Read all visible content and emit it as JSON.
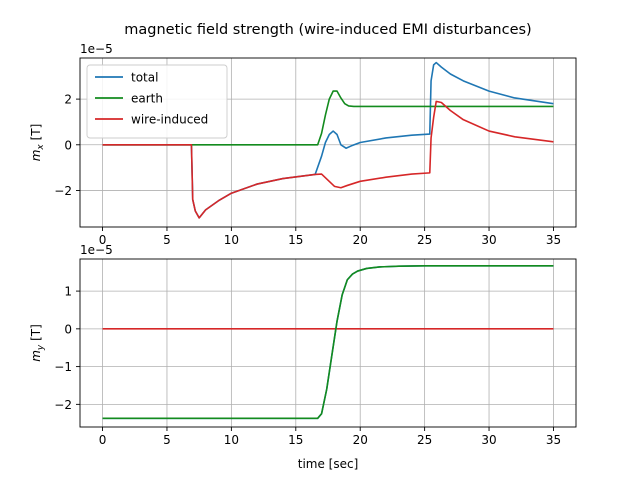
{
  "figure": {
    "title": "magnetic field strength (wire-induced EMI disturbances)"
  },
  "colors": {
    "total": "#1f77b4",
    "earth": "#138b1e",
    "wire_induced": "#d62728",
    "grid": "#b0b0b0",
    "axes": "#000000",
    "legend_border": "#cccccc"
  },
  "chart_data": [
    {
      "type": "line",
      "title": "magnetic field strength (wire-induced EMI disturbances)",
      "xlabel": "",
      "ylabel": "m_x [T]",
      "ylabel_base": "m",
      "ylabel_sub": "x",
      "ylabel_unit": " [T]",
      "offset_text": "1e−5",
      "scale": 1e-05,
      "xlim": [
        -1.75,
        36.75
      ],
      "ylim": [
        -3.6,
        3.8
      ],
      "xticks": [
        0,
        5,
        10,
        15,
        20,
        25,
        30,
        35
      ],
      "xtick_labels": [
        "0",
        "5",
        "10",
        "15",
        "20",
        "25",
        "30",
        "35"
      ],
      "yticks": [
        -2,
        0,
        2
      ],
      "ytick_labels": [
        "−2",
        "0",
        "2"
      ],
      "grid": true,
      "legend": "upper-left",
      "series": [
        {
          "name": "total",
          "color_key": "total",
          "x": [
            0,
            6.9,
            7.0,
            7.2,
            7.5,
            8,
            9,
            10,
            12,
            14,
            16.5,
            17,
            17.3,
            17.6,
            17.9,
            18.2,
            18.5,
            18.9,
            19.3,
            20,
            22,
            24,
            25.4,
            25.5,
            25.7,
            25.9,
            26.3,
            27,
            28,
            30,
            32,
            35
          ],
          "values": [
            0,
            0,
            -2.4,
            -2.9,
            -3.2,
            -2.85,
            -2.45,
            -2.12,
            -1.72,
            -1.48,
            -1.3,
            -0.5,
            0.1,
            0.45,
            0.6,
            0.45,
            0.0,
            -0.15,
            -0.05,
            0.1,
            0.3,
            0.42,
            0.47,
            2.8,
            3.5,
            3.6,
            3.4,
            3.1,
            2.8,
            2.35,
            2.05,
            1.8
          ]
        },
        {
          "name": "earth",
          "color_key": "earth",
          "x": [
            0,
            16.7,
            17.0,
            17.3,
            17.6,
            17.9,
            18.2,
            18.5,
            18.8,
            19.1,
            19.5,
            20,
            25,
            35
          ],
          "values": [
            0,
            0,
            0.5,
            1.3,
            2.0,
            2.35,
            2.35,
            2.05,
            1.8,
            1.7,
            1.68,
            1.68,
            1.68,
            1.68
          ]
        },
        {
          "name": "wire-induced",
          "color_key": "wire_induced",
          "x": [
            0,
            6.9,
            7.0,
            7.2,
            7.5,
            8,
            9,
            10,
            12,
            14,
            16.5,
            17,
            17.5,
            18,
            18.5,
            19,
            20,
            22,
            24,
            25.4,
            25.5,
            25.7,
            25.9,
            26.3,
            27,
            28,
            30,
            32,
            35
          ],
          "values": [
            0,
            0,
            -2.4,
            -2.9,
            -3.2,
            -2.85,
            -2.45,
            -2.12,
            -1.72,
            -1.48,
            -1.3,
            -1.28,
            -1.55,
            -1.82,
            -1.88,
            -1.78,
            -1.6,
            -1.42,
            -1.28,
            -1.23,
            0.3,
            1.2,
            1.9,
            1.85,
            1.5,
            1.1,
            0.6,
            0.35,
            0.13
          ]
        }
      ]
    },
    {
      "type": "line",
      "title": "",
      "xlabel": "time [sec]",
      "ylabel": "m_y [T]",
      "ylabel_base": "m",
      "ylabel_sub": "y",
      "ylabel_unit": " [T]",
      "offset_text": "1e−5",
      "scale": 1e-05,
      "xlim": [
        -1.75,
        36.75
      ],
      "ylim": [
        -2.6,
        1.85
      ],
      "xticks": [
        0,
        5,
        10,
        15,
        20,
        25,
        30,
        35
      ],
      "xtick_labels": [
        "0",
        "5",
        "10",
        "15",
        "20",
        "25",
        "30",
        "35"
      ],
      "yticks": [
        -2,
        -1,
        0,
        1
      ],
      "ytick_labels": [
        "−2",
        "−1",
        "0",
        "1"
      ],
      "grid": true,
      "legend": "none",
      "series": [
        {
          "color_key": "total",
          "x": [
            0,
            16.7,
            17.0,
            17.4,
            17.8,
            18.2,
            18.6,
            19.0,
            19.4,
            19.8,
            20.5,
            21.5,
            23,
            25,
            35
          ],
          "values": [
            -2.37,
            -2.37,
            -2.25,
            -1.6,
            -0.7,
            0.2,
            0.9,
            1.3,
            1.45,
            1.53,
            1.6,
            1.64,
            1.66,
            1.67,
            1.67
          ]
        },
        {
          "color_key": "wire_induced",
          "x": [
            0,
            35
          ],
          "values": [
            0,
            0
          ]
        },
        {
          "color_key": "earth",
          "x": [
            0,
            16.7,
            17.0,
            17.4,
            17.8,
            18.2,
            18.6,
            19.0,
            19.4,
            19.8,
            20.5,
            21.5,
            23,
            25,
            35
          ],
          "values": [
            -2.37,
            -2.37,
            -2.25,
            -1.6,
            -0.7,
            0.2,
            0.9,
            1.3,
            1.45,
            1.53,
            1.6,
            1.64,
            1.66,
            1.67,
            1.67
          ]
        }
      ]
    }
  ]
}
